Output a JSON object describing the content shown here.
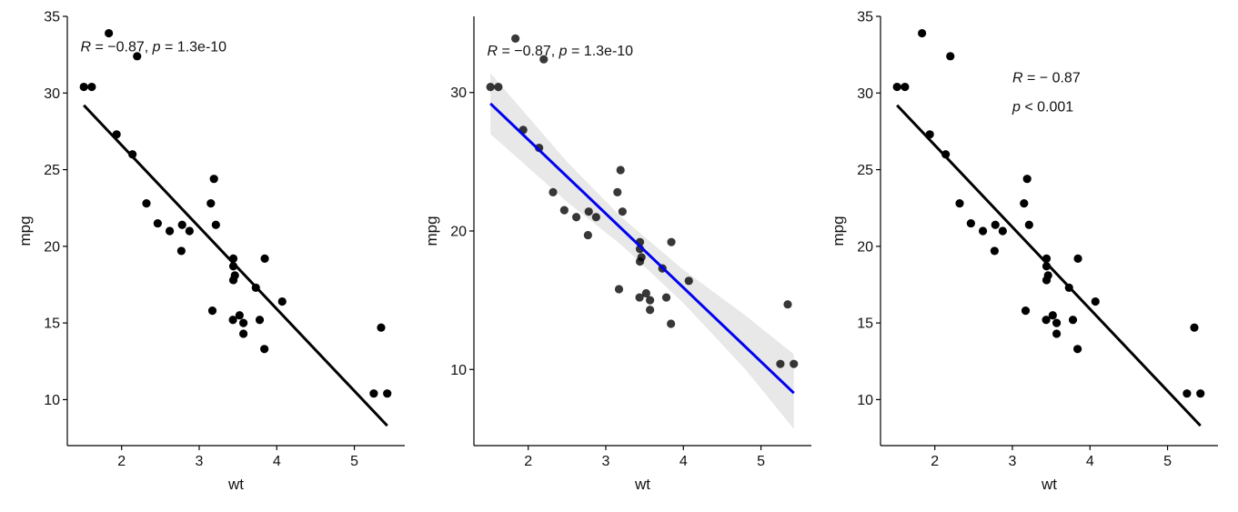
{
  "colors": {
    "point": "#000000",
    "fit_line": "#000000",
    "fit_line_blue": "#0000ee",
    "ci_band": "#d9d9d9",
    "axis": "#000000"
  },
  "chart_data": [
    {
      "type": "scatter",
      "panel": "left",
      "xlabel": "wt",
      "ylabel": "mpg",
      "xlim": [
        1.3,
        5.65
      ],
      "ylim": [
        7,
        35
      ],
      "xticks": [
        2,
        3,
        4,
        5
      ],
      "yticks": [
        10,
        15,
        20,
        25,
        30,
        35
      ],
      "xtick_labels": [
        "2",
        "3",
        "4",
        "5"
      ],
      "ytick_labels": [
        "10",
        "15",
        "20",
        "25",
        "30",
        "35"
      ],
      "annotation": {
        "r_label": "R",
        "r_value": " = −0.87, ",
        "p_label": "p",
        "p_value": " = 1.3e-10"
      },
      "annotation_pos": [
        1.47,
        33
      ],
      "fit": {
        "intercept": 37.285,
        "slope": -5.344,
        "x_range": [
          1.513,
          5.424
        ],
        "ci": false
      },
      "points": [
        {
          "x": 2.62,
          "y": 21.0
        },
        {
          "x": 2.875,
          "y": 21.0
        },
        {
          "x": 2.32,
          "y": 22.8
        },
        {
          "x": 3.215,
          "y": 21.4
        },
        {
          "x": 3.44,
          "y": 18.7
        },
        {
          "x": 3.46,
          "y": 18.1
        },
        {
          "x": 3.57,
          "y": 14.3
        },
        {
          "x": 3.19,
          "y": 24.4
        },
        {
          "x": 3.15,
          "y": 22.8
        },
        {
          "x": 3.44,
          "y": 19.2
        },
        {
          "x": 3.44,
          "y": 17.8
        },
        {
          "x": 4.07,
          "y": 16.4
        },
        {
          "x": 3.73,
          "y": 17.3
        },
        {
          "x": 3.78,
          "y": 15.2
        },
        {
          "x": 5.25,
          "y": 10.4
        },
        {
          "x": 5.424,
          "y": 10.4
        },
        {
          "x": 5.345,
          "y": 14.7
        },
        {
          "x": 2.2,
          "y": 32.4
        },
        {
          "x": 1.615,
          "y": 30.4
        },
        {
          "x": 1.835,
          "y": 33.9
        },
        {
          "x": 2.465,
          "y": 21.5
        },
        {
          "x": 3.52,
          "y": 15.5
        },
        {
          "x": 3.435,
          "y": 15.2
        },
        {
          "x": 3.84,
          "y": 13.3
        },
        {
          "x": 3.845,
          "y": 19.2
        },
        {
          "x": 1.935,
          "y": 27.3
        },
        {
          "x": 2.14,
          "y": 26.0
        },
        {
          "x": 1.513,
          "y": 30.4
        },
        {
          "x": 3.17,
          "y": 15.8
        },
        {
          "x": 2.77,
          "y": 19.7
        },
        {
          "x": 3.57,
          "y": 15.0
        },
        {
          "x": 2.78,
          "y": 21.4
        }
      ]
    },
    {
      "type": "scatter",
      "panel": "middle",
      "xlabel": "wt",
      "ylabel": "mpg",
      "xlim": [
        1.3,
        5.65
      ],
      "ylim": [
        4.5,
        35.5
      ],
      "xticks": [
        2,
        3,
        4,
        5
      ],
      "yticks": [
        10,
        20,
        30
      ],
      "xtick_labels": [
        "2",
        "3",
        "4",
        "5"
      ],
      "ytick_labels": [
        "10",
        "20",
        "30"
      ],
      "annotation": {
        "r_label": "R",
        "r_value": " = −0.87, ",
        "p_label": "p",
        "p_value": " = 1.3e-10"
      },
      "annotation_pos": [
        1.47,
        33
      ],
      "fit": {
        "intercept": 37.285,
        "slope": -5.344,
        "x_range": [
          1.513,
          5.424
        ],
        "ci": true,
        "ci_upper": [
          [
            1.513,
            31.4
          ],
          [
            2.5,
            25.0
          ],
          [
            3.2,
            21.0
          ],
          [
            4.0,
            17.2
          ],
          [
            4.8,
            13.9
          ],
          [
            5.424,
            11.1
          ]
        ],
        "ci_lower": [
          [
            1.513,
            27.0
          ],
          [
            2.5,
            22.1
          ],
          [
            3.2,
            19.0
          ],
          [
            4.0,
            14.8
          ],
          [
            4.8,
            10.0
          ],
          [
            5.424,
            5.7
          ]
        ]
      },
      "points": [
        {
          "x": 2.62,
          "y": 21.0
        },
        {
          "x": 2.875,
          "y": 21.0
        },
        {
          "x": 2.32,
          "y": 22.8
        },
        {
          "x": 3.215,
          "y": 21.4
        },
        {
          "x": 3.44,
          "y": 18.7
        },
        {
          "x": 3.46,
          "y": 18.1
        },
        {
          "x": 3.57,
          "y": 14.3
        },
        {
          "x": 3.19,
          "y": 24.4
        },
        {
          "x": 3.15,
          "y": 22.8
        },
        {
          "x": 3.44,
          "y": 19.2
        },
        {
          "x": 3.44,
          "y": 17.8
        },
        {
          "x": 4.07,
          "y": 16.4
        },
        {
          "x": 3.73,
          "y": 17.3
        },
        {
          "x": 3.78,
          "y": 15.2
        },
        {
          "x": 5.25,
          "y": 10.4
        },
        {
          "x": 5.424,
          "y": 10.4
        },
        {
          "x": 5.345,
          "y": 14.7
        },
        {
          "x": 2.2,
          "y": 32.4
        },
        {
          "x": 1.615,
          "y": 30.4
        },
        {
          "x": 1.835,
          "y": 33.9
        },
        {
          "x": 2.465,
          "y": 21.5
        },
        {
          "x": 3.52,
          "y": 15.5
        },
        {
          "x": 3.435,
          "y": 15.2
        },
        {
          "x": 3.84,
          "y": 13.3
        },
        {
          "x": 3.845,
          "y": 19.2
        },
        {
          "x": 1.935,
          "y": 27.3
        },
        {
          "x": 2.14,
          "y": 26.0
        },
        {
          "x": 1.513,
          "y": 30.4
        },
        {
          "x": 3.17,
          "y": 15.8
        },
        {
          "x": 2.77,
          "y": 19.7
        },
        {
          "x": 3.57,
          "y": 15.0
        },
        {
          "x": 2.78,
          "y": 21.4
        }
      ]
    },
    {
      "type": "scatter",
      "panel": "right",
      "xlabel": "wt",
      "ylabel": "mpg",
      "xlim": [
        1.3,
        5.65
      ],
      "ylim": [
        7,
        35
      ],
      "xticks": [
        2,
        3,
        4,
        5
      ],
      "yticks": [
        10,
        15,
        20,
        25,
        30,
        35
      ],
      "xtick_labels": [
        "2",
        "3",
        "4",
        "5"
      ],
      "ytick_labels": [
        "10",
        "15",
        "20",
        "25",
        "30",
        "35"
      ],
      "annotation_lines": [
        {
          "label": "R",
          "value": " = − 0.87"
        },
        {
          "label": "p",
          "value": " < 0.001"
        }
      ],
      "annotation_pos": [
        3.0,
        31
      ],
      "fit": {
        "intercept": 37.285,
        "slope": -5.344,
        "x_range": [
          1.513,
          5.424
        ],
        "ci": false
      },
      "points": [
        {
          "x": 2.62,
          "y": 21.0
        },
        {
          "x": 2.875,
          "y": 21.0
        },
        {
          "x": 2.32,
          "y": 22.8
        },
        {
          "x": 3.215,
          "y": 21.4
        },
        {
          "x": 3.44,
          "y": 18.7
        },
        {
          "x": 3.46,
          "y": 18.1
        },
        {
          "x": 3.57,
          "y": 14.3
        },
        {
          "x": 3.19,
          "y": 24.4
        },
        {
          "x": 3.15,
          "y": 22.8
        },
        {
          "x": 3.44,
          "y": 19.2
        },
        {
          "x": 3.44,
          "y": 17.8
        },
        {
          "x": 4.07,
          "y": 16.4
        },
        {
          "x": 3.73,
          "y": 17.3
        },
        {
          "x": 3.78,
          "y": 15.2
        },
        {
          "x": 5.25,
          "y": 10.4
        },
        {
          "x": 5.424,
          "y": 10.4
        },
        {
          "x": 5.345,
          "y": 14.7
        },
        {
          "x": 2.2,
          "y": 32.4
        },
        {
          "x": 1.615,
          "y": 30.4
        },
        {
          "x": 1.835,
          "y": 33.9
        },
        {
          "x": 2.465,
          "y": 21.5
        },
        {
          "x": 3.52,
          "y": 15.5
        },
        {
          "x": 3.435,
          "y": 15.2
        },
        {
          "x": 3.84,
          "y": 13.3
        },
        {
          "x": 3.845,
          "y": 19.2
        },
        {
          "x": 1.935,
          "y": 27.3
        },
        {
          "x": 2.14,
          "y": 26.0
        },
        {
          "x": 1.513,
          "y": 30.4
        },
        {
          "x": 3.17,
          "y": 15.8
        },
        {
          "x": 2.77,
          "y": 19.7
        },
        {
          "x": 3.57,
          "y": 15.0
        },
        {
          "x": 2.78,
          "y": 21.4
        }
      ]
    }
  ]
}
